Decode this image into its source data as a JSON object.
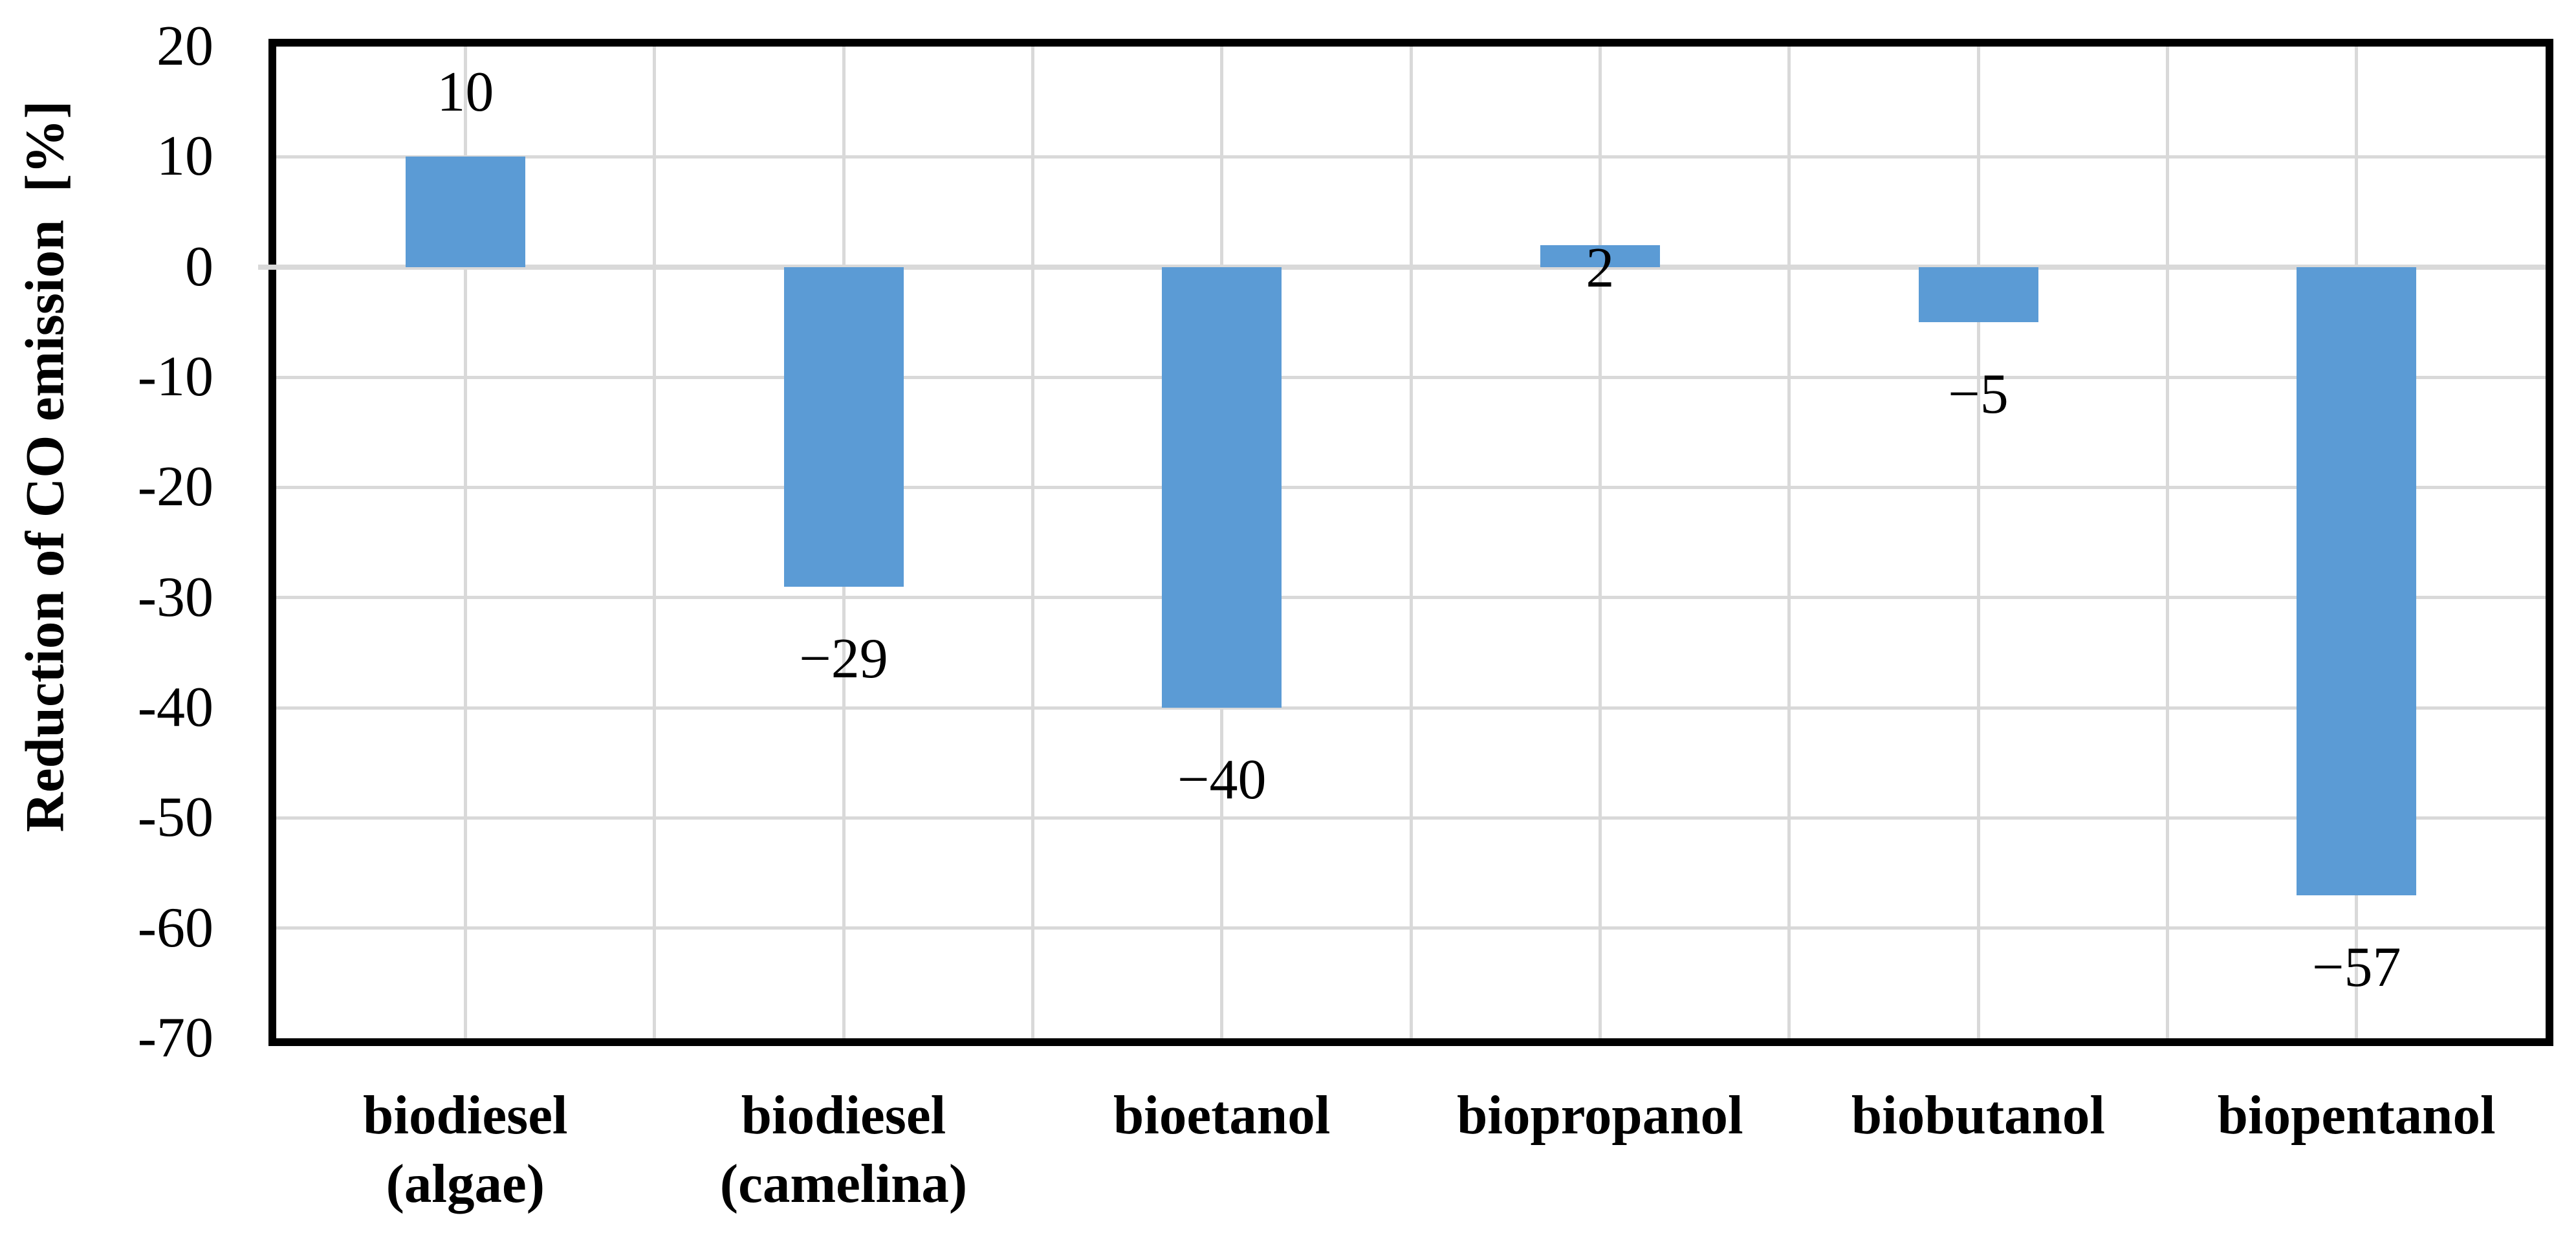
{
  "chart_data": {
    "type": "bar",
    "title": "",
    "ylabel": "Reduction of CO emission  [%]",
    "categories": [
      "biodiesel (algae)",
      "biodiesel (camelina)",
      "bioetanol",
      "biopropanol",
      "biobutanol",
      "biopentanol"
    ],
    "category_label_lines": [
      [
        "biodiesel",
        "(algae)"
      ],
      [
        "biodiesel",
        "(camelina)"
      ],
      [
        "bioetanol"
      ],
      [
        "biopropanol"
      ],
      [
        "biobutanol"
      ],
      [
        "biopentanol"
      ]
    ],
    "values": [
      10,
      -29,
      -40,
      2,
      -5,
      -57
    ],
    "data_labels": [
      "10",
      "−29",
      "−40",
      "2",
      "−5",
      "−57"
    ],
    "ylim": [
      -70,
      20
    ],
    "ytick_interval": 10,
    "ytick_labels": [
      "20",
      "10",
      "0",
      "-10",
      "-20",
      "-30",
      "-40",
      "-50",
      "-60",
      "-70"
    ],
    "ytick_values": [
      20,
      10,
      0,
      -10,
      -20,
      -30,
      -40,
      -50,
      -60,
      -70
    ],
    "grid": {
      "horizontal": true,
      "vertical": true,
      "vertical_per_half_category": true
    },
    "legend_position": "none",
    "colors": {
      "bar": "#5B9BD5",
      "gridline": "#D9D9D9",
      "plot_border": "#000000",
      "text": "#000000",
      "background": "#FFFFFF"
    }
  }
}
